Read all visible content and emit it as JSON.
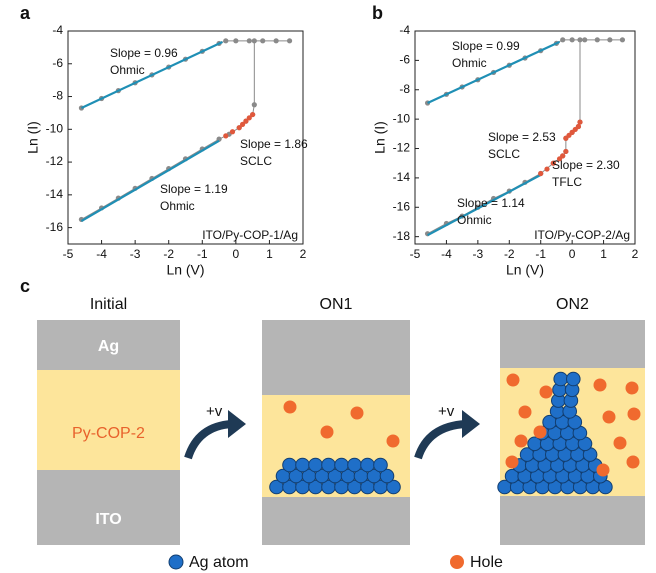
{
  "chart_data": [
    {
      "type": "line",
      "label": "a",
      "xlabel": "Ln (V)",
      "ylabel": "Ln (I)",
      "xlim": [
        -5,
        2
      ],
      "xticks": [
        -5,
        -4,
        -3,
        -2,
        -1,
        0,
        1,
        2
      ],
      "ylim": [
        -17,
        -4
      ],
      "yticks": [
        -16,
        -14,
        -12,
        -10,
        -8,
        -6,
        -4
      ],
      "annotations": [
        "Slope = 0.96",
        "Ohmic",
        "Slope = 1.86",
        "SCLC",
        "Slope = 1.19",
        "Ohmic",
        "ITO/Py-COP-1/Ag"
      ],
      "series": [
        {
          "color": "#8a8a8a",
          "marker": true,
          "line": true,
          "x": [
            -4.6,
            -4,
            -3.5,
            -3,
            -2.5,
            -2,
            -1.5,
            -1,
            -0.5,
            -0.3,
            0,
            0.4,
            0.8,
            1.2,
            1.6
          ],
          "values": [
            -8.7,
            -8.12,
            -7.64,
            -7.16,
            -6.68,
            -6.2,
            -5.72,
            -5.24,
            -4.76,
            -4.6,
            -4.6,
            -4.6,
            -4.6,
            -4.6,
            -4.6
          ]
        },
        {
          "color": "#1f8fb5",
          "marker": false,
          "line": true,
          "x": [
            -4.6,
            -0.4
          ],
          "values": [
            -8.7,
            -4.67
          ]
        },
        {
          "color": "#8a8a8a",
          "marker": true,
          "line": true,
          "x": [
            -4.6,
            -4,
            -3.5,
            -3,
            -2.5,
            -2,
            -1.5,
            -1,
            -0.5,
            -0.2,
            0.1,
            0.3,
            0.5,
            0.55,
            0.55
          ],
          "values": [
            -15.5,
            -14.8,
            -14.2,
            -13.6,
            -13.0,
            -12.4,
            -11.8,
            -11.2,
            -10.6,
            -10.3,
            -9.9,
            -9.5,
            -9.1,
            -8.5,
            -4.6
          ]
        },
        {
          "color": "#1f8fb5",
          "marker": false,
          "line": true,
          "x": [
            -4.6,
            -0.5
          ],
          "values": [
            -15.6,
            -10.7
          ]
        },
        {
          "color": "#e0583c",
          "marker": true,
          "line": false,
          "x": [
            -0.3,
            -0.1,
            0.1,
            0.2,
            0.3,
            0.4,
            0.5
          ],
          "values": [
            -10.4,
            -10.15,
            -9.9,
            -9.7,
            -9.5,
            -9.3,
            -9.1
          ]
        }
      ]
    },
    {
      "type": "line",
      "label": "b",
      "xlabel": "Ln (V)",
      "ylabel": "Ln (I)",
      "xlim": [
        -5,
        2
      ],
      "xticks": [
        -5,
        -4,
        -3,
        -2,
        -1,
        0,
        1,
        2
      ],
      "ylim": [
        -18.5,
        -4
      ],
      "yticks": [
        -18,
        -16,
        -14,
        -12,
        -10,
        -8,
        -6,
        -4
      ],
      "annotations": [
        "Slope = 0.99",
        "Ohmic",
        "Slope = 2.53",
        "SCLC",
        "Slope = 2.30",
        "TFLC",
        "Slope = 1.14",
        "Ohmic",
        "ITO/Py-COP-2/Ag"
      ],
      "series": [
        {
          "color": "#8a8a8a",
          "marker": true,
          "line": true,
          "x": [
            -4.6,
            -4,
            -3.5,
            -3,
            -2.5,
            -2,
            -1.5,
            -1,
            -0.5,
            -0.3,
            0,
            0.4,
            0.8,
            1.2,
            1.6
          ],
          "values": [
            -8.9,
            -8.31,
            -7.81,
            -7.32,
            -6.82,
            -6.33,
            -5.84,
            -5.34,
            -4.84,
            -4.6,
            -4.6,
            -4.6,
            -4.6,
            -4.6,
            -4.6
          ]
        },
        {
          "color": "#1f8fb5",
          "marker": false,
          "line": true,
          "x": [
            -4.6,
            -0.4
          ],
          "values": [
            -8.9,
            -4.74
          ]
        },
        {
          "color": "#8a8a8a",
          "marker": true,
          "line": true,
          "x": [
            -4.6,
            -4,
            -3.5,
            -3,
            -2.5,
            -2,
            -1.5,
            -1,
            -0.6,
            -0.3,
            -0.2,
            -0.2,
            0,
            0.2,
            0.25,
            0.25
          ],
          "values": [
            -17.8,
            -17.1,
            -16.6,
            -16.0,
            -15.4,
            -14.9,
            -14.3,
            -13.7,
            -13.0,
            -12.5,
            -12.2,
            -11.3,
            -10.9,
            -10.5,
            -10.2,
            -4.6
          ]
        },
        {
          "color": "#1f8fb5",
          "marker": false,
          "line": true,
          "x": [
            -4.6,
            -1.0
          ],
          "values": [
            -17.9,
            -13.8
          ]
        },
        {
          "color": "#e0583c",
          "marker": true,
          "line": false,
          "x": [
            -1.0,
            -0.8,
            -0.6,
            -0.4,
            -0.3,
            -0.2,
            -0.2,
            -0.1,
            0,
            0.1,
            0.2,
            0.25
          ],
          "values": [
            -13.7,
            -13.4,
            -13.0,
            -12.7,
            -12.5,
            -12.2,
            -11.3,
            -11.1,
            -10.9,
            -10.7,
            -10.5,
            -10.2
          ]
        }
      ]
    }
  ],
  "diagram": {
    "label": "c",
    "panels": [
      {
        "title": "Initial",
        "top": "Ag",
        "middle": "Py-COP-2",
        "bottom": "ITO"
      },
      {
        "title": "ON1"
      },
      {
        "title": "ON2"
      }
    ],
    "arrows": [
      "+v",
      "+v"
    ],
    "legend": [
      "Ag atom",
      "Hole"
    ]
  }
}
